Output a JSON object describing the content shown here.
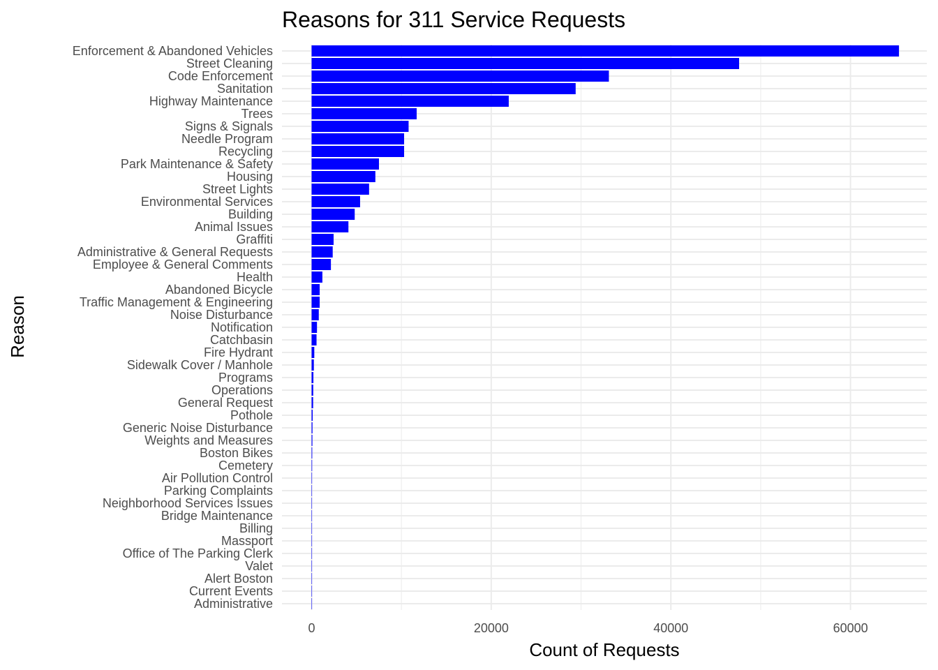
{
  "chart_data": {
    "type": "bar",
    "orientation": "horizontal",
    "title": "Reasons for 311 Service Requests",
    "xlabel": "Count of Requests",
    "ylabel": "Reason",
    "bar_color": "#0000ff",
    "grid_color": "#ebebeb",
    "background": "#ffffff",
    "grid": true,
    "xlim": [
      -3300,
      68500
    ],
    "x_ticks": [
      0,
      20000,
      40000,
      60000
    ],
    "x_tick_labels": [
      "0",
      "20000",
      "40000",
      "60000"
    ],
    "categories": [
      "Enforcement & Abandoned Vehicles",
      "Street Cleaning",
      "Code Enforcement",
      "Sanitation",
      "Highway Maintenance",
      "Trees",
      "Signs & Signals",
      "Needle Program",
      "Recycling",
      "Park Maintenance & Safety",
      "Housing",
      "Street Lights",
      "Environmental Services",
      "Building",
      "Animal Issues",
      "Graffiti",
      "Administrative & General Requests",
      "Employee & General Comments",
      "Health",
      "Abandoned Bicycle",
      "Traffic Management & Engineering",
      "Noise Disturbance",
      "Notification",
      "Catchbasin",
      "Fire Hydrant",
      "Sidewalk Cover / Manhole",
      "Programs",
      "Operations",
      "General Request",
      "Pothole",
      "Generic Noise Disturbance",
      "Weights and Measures",
      "Boston Bikes",
      "Cemetery",
      "Air Pollution Control",
      "Parking Complaints",
      "Neighborhood Services Issues",
      "Bridge Maintenance",
      "Billing",
      "Massport",
      "Office of The Parking Clerk",
      "Valet",
      "Alert Boston",
      "Current Events",
      "Administrative"
    ],
    "values": [
      65400,
      47600,
      33100,
      29400,
      21950,
      11700,
      10800,
      10300,
      10300,
      7500,
      7100,
      6400,
      5400,
      4800,
      4100,
      2450,
      2350,
      2150,
      1200,
      900,
      900,
      800,
      600,
      550,
      300,
      250,
      200,
      180,
      170,
      120,
      100,
      90,
      70,
      60,
      50,
      40,
      30,
      25,
      20,
      15,
      12,
      10,
      8,
      6,
      5
    ]
  }
}
